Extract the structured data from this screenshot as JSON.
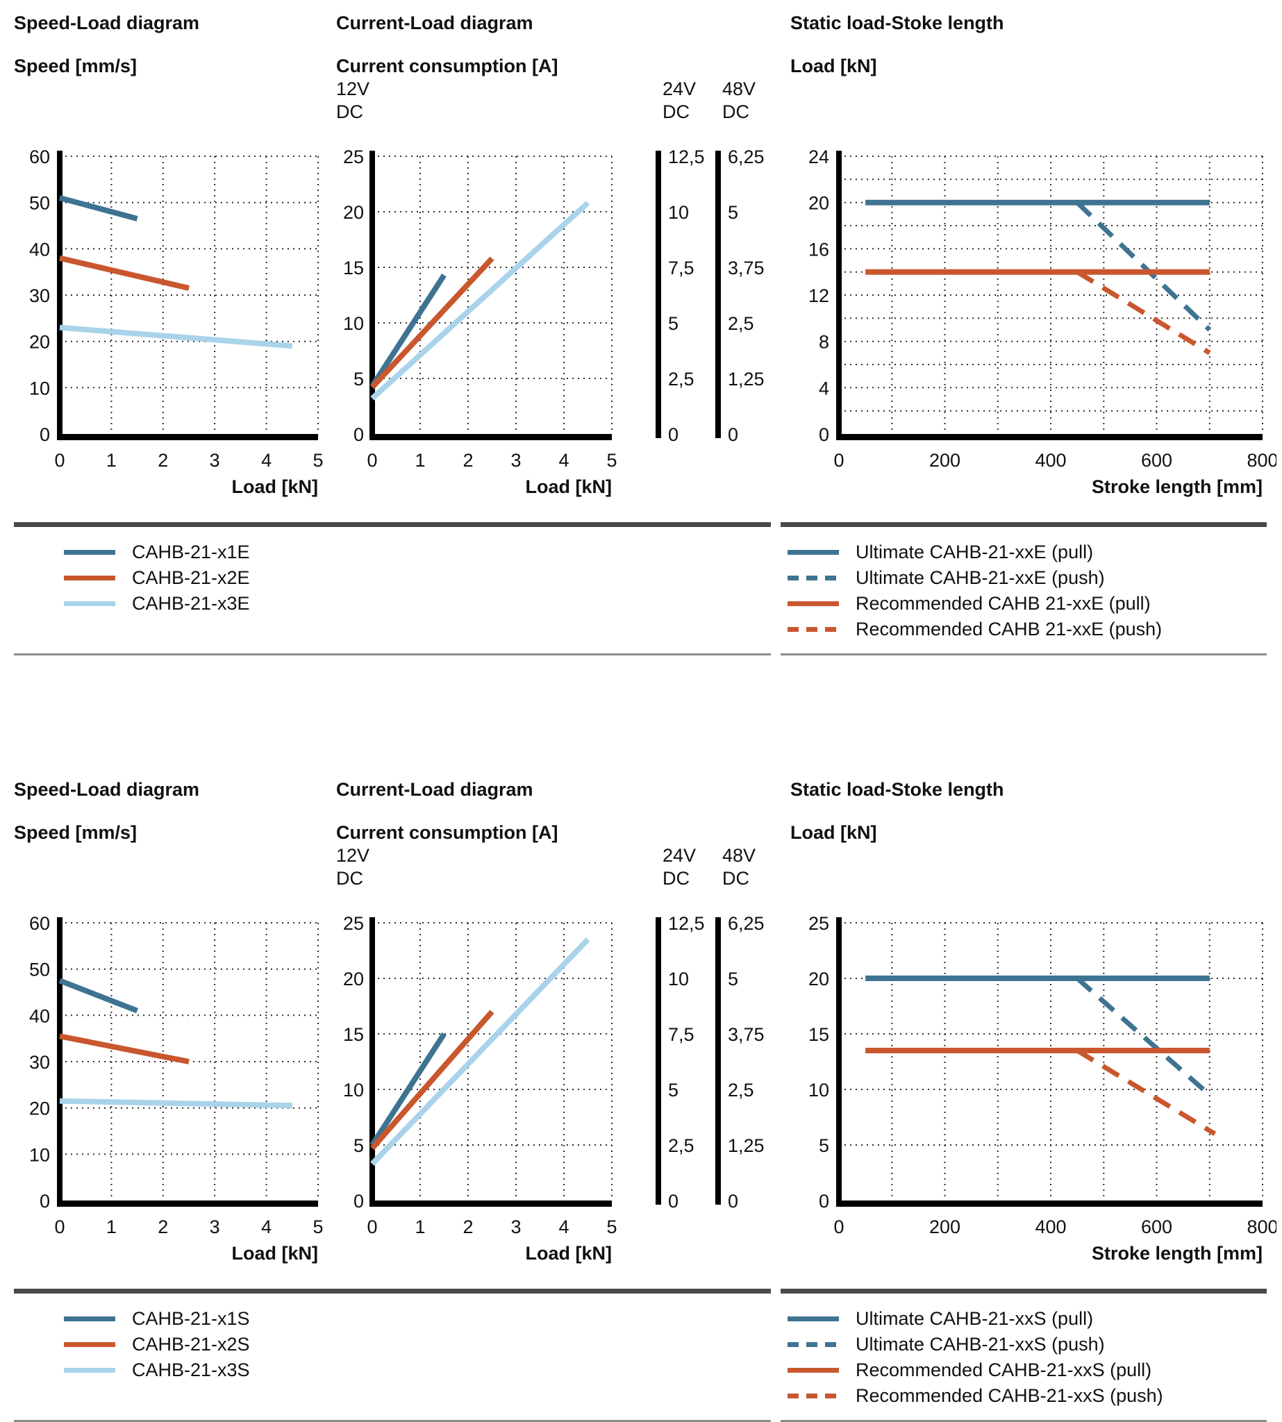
{
  "colors": {
    "dark_blue": "#3E7392",
    "orange": "#C9572E",
    "light_blue": "#A9D3EA",
    "axis": "#000000",
    "grid": "#2E2E2E",
    "rule_dark": "#4A4A4A",
    "rule_light": "#8C8C8C"
  },
  "chart_data": [
    {
      "kind": "speed",
      "type": "line",
      "title": "Speed-Load diagram",
      "ylabel": "Speed [mm/s]",
      "xlabel": "Load [kN]",
      "xlim": [
        0,
        5
      ],
      "ylim": [
        0,
        60
      ],
      "xticks": [
        0,
        1,
        2,
        3,
        4,
        5
      ],
      "yticks": [
        0,
        10,
        20,
        30,
        40,
        50,
        60
      ],
      "xgrid_step": 1,
      "ygrid_step": 10,
      "series": [
        {
          "id": "CAHB-21-x1E",
          "color": "dark_blue",
          "dashed": false,
          "points": [
            [
              0,
              51
            ],
            [
              1.5,
              46.5
            ]
          ]
        },
        {
          "id": "CAHB-21-x2E",
          "color": "orange",
          "dashed": false,
          "points": [
            [
              0,
              38
            ],
            [
              2.5,
              31.5
            ]
          ]
        },
        {
          "id": "CAHB-21-x3E",
          "color": "light_blue",
          "dashed": false,
          "points": [
            [
              0,
              23
            ],
            [
              4.5,
              19
            ]
          ]
        }
      ]
    },
    {
      "kind": "current",
      "type": "line",
      "title": "Current-Load diagram",
      "ylabel": "Current consumption [A]",
      "xlabel": "Load [kN]",
      "primary_voltage": "12V\nDC",
      "secondary_axes": [
        {
          "header": "24V\nDC",
          "ticks": [
            "12,5",
            "10",
            "7,5",
            "5",
            "2,5",
            "0"
          ]
        },
        {
          "header": "48V\nDC",
          "ticks": [
            "6,25",
            "5",
            "3,75",
            "2,5",
            "1,25",
            "0"
          ]
        }
      ],
      "xlim": [
        0,
        5
      ],
      "ylim": [
        0,
        25
      ],
      "xticks": [
        0,
        1,
        2,
        3,
        4,
        5
      ],
      "yticks": [
        0,
        5,
        10,
        15,
        20,
        25
      ],
      "xgrid_step": 1,
      "ygrid_step": 5,
      "series": [
        {
          "id": "CAHB-21-x1E",
          "color": "dark_blue",
          "dashed": false,
          "points": [
            [
              0,
              4.3
            ],
            [
              1.5,
              14.3
            ]
          ]
        },
        {
          "id": "CAHB-21-x2E",
          "color": "orange",
          "dashed": false,
          "points": [
            [
              0,
              4.2
            ],
            [
              2.5,
              15.8
            ]
          ]
        },
        {
          "id": "CAHB-21-x3E",
          "color": "light_blue",
          "dashed": false,
          "points": [
            [
              0,
              3.2
            ],
            [
              4.5,
              20.8
            ]
          ]
        }
      ]
    },
    {
      "kind": "static",
      "type": "line",
      "title": "Static load-Stoke length",
      "ylabel": "Load [kN]",
      "xlabel": "Stroke length [mm]",
      "xlim": [
        0,
        800
      ],
      "ylim": [
        0,
        24
      ],
      "xticks": [
        0,
        200,
        400,
        600,
        800
      ],
      "yticks": [
        0,
        4,
        8,
        12,
        16,
        20,
        24
      ],
      "xgrid_step": 100,
      "ygrid_step": 2,
      "series": [
        {
          "id": "Ultimate CAHB-21-xxE (pull)",
          "color": "dark_blue",
          "dashed": false,
          "points": [
            [
              50,
              20
            ],
            [
              700,
              20
            ]
          ]
        },
        {
          "id": "Ultimate CAHB-21-xxE (push)",
          "color": "dark_blue",
          "dashed": true,
          "points": [
            [
              450,
              20
            ],
            [
              700,
              9
            ]
          ]
        },
        {
          "id": "Recommended CAHB 21-xxE (pull)",
          "color": "orange",
          "dashed": false,
          "points": [
            [
              50,
              14
            ],
            [
              700,
              14
            ]
          ]
        },
        {
          "id": "Recommended CAHB 21-xxE (push)",
          "color": "orange",
          "dashed": true,
          "points": [
            [
              450,
              14
            ],
            [
              700,
              7
            ]
          ]
        }
      ]
    },
    {
      "kind": "speed",
      "type": "line",
      "title": "Speed-Load diagram",
      "ylabel": "Speed [mm/s]",
      "xlabel": "Load [kN]",
      "xlim": [
        0,
        5
      ],
      "ylim": [
        0,
        60
      ],
      "xticks": [
        0,
        1,
        2,
        3,
        4,
        5
      ],
      "yticks": [
        0,
        10,
        20,
        30,
        40,
        50,
        60
      ],
      "xgrid_step": 1,
      "ygrid_step": 10,
      "series": [
        {
          "id": "CAHB-21-x1S",
          "color": "dark_blue",
          "dashed": false,
          "points": [
            [
              0,
              47.5
            ],
            [
              1.5,
              41
            ]
          ]
        },
        {
          "id": "CAHB-21-x2S",
          "color": "orange",
          "dashed": false,
          "points": [
            [
              0,
              35.5
            ],
            [
              2.5,
              30
            ]
          ]
        },
        {
          "id": "CAHB-21-x3S",
          "color": "light_blue",
          "dashed": false,
          "points": [
            [
              0,
              21.5
            ],
            [
              4.5,
              20.5
            ]
          ]
        }
      ]
    },
    {
      "kind": "current",
      "type": "line",
      "title": "Current-Load diagram",
      "ylabel": "Current consumption [A]",
      "xlabel": "Load [kN]",
      "primary_voltage": "12V\nDC",
      "secondary_axes": [
        {
          "header": "24V\nDC",
          "ticks": [
            "12,5",
            "10",
            "7,5",
            "5",
            "2,5",
            "0"
          ]
        },
        {
          "header": "48V\nDC",
          "ticks": [
            "6,25",
            "5",
            "3,75",
            "2,5",
            "1,25",
            "0"
          ]
        }
      ],
      "xlim": [
        0,
        5
      ],
      "ylim": [
        0,
        25
      ],
      "xticks": [
        0,
        1,
        2,
        3,
        4,
        5
      ],
      "yticks": [
        0,
        5,
        10,
        15,
        20,
        25
      ],
      "xgrid_step": 1,
      "ygrid_step": 5,
      "series": [
        {
          "id": "CAHB-21-x1S",
          "color": "dark_blue",
          "dashed": false,
          "points": [
            [
              0,
              5
            ],
            [
              1.5,
              15
            ]
          ]
        },
        {
          "id": "CAHB-21-x2S",
          "color": "orange",
          "dashed": false,
          "points": [
            [
              0,
              4.7
            ],
            [
              2.5,
              17
            ]
          ]
        },
        {
          "id": "CAHB-21-x3S",
          "color": "light_blue",
          "dashed": false,
          "points": [
            [
              0,
              3.3
            ],
            [
              4.5,
              23.5
            ]
          ]
        }
      ]
    },
    {
      "kind": "static",
      "type": "line",
      "title": "Static load-Stoke length",
      "ylabel": "Load [kN]",
      "xlabel": "Stroke length [mm]",
      "xlim": [
        0,
        800
      ],
      "ylim": [
        0,
        25
      ],
      "xticks": [
        0,
        200,
        400,
        600,
        800
      ],
      "yticks": [
        0,
        5,
        10,
        15,
        20,
        25
      ],
      "xgrid_step": 100,
      "ygrid_step": 5,
      "series": [
        {
          "id": "Ultimate CAHB-21-xxS (pull)",
          "color": "dark_blue",
          "dashed": false,
          "points": [
            [
              50,
              20
            ],
            [
              700,
              20
            ]
          ]
        },
        {
          "id": "Ultimate CAHB-21-xxS (push)",
          "color": "dark_blue",
          "dashed": true,
          "points": [
            [
              450,
              20
            ],
            [
              700,
              9.5
            ]
          ]
        },
        {
          "id": "Recommended CAHB-21-xxS (pull)",
          "color": "orange",
          "dashed": false,
          "points": [
            [
              50,
              13.5
            ],
            [
              700,
              13.5
            ]
          ]
        },
        {
          "id": "Recommended CAHB-21-xxS (push)",
          "color": "orange",
          "dashed": true,
          "points": [
            [
              450,
              13.5
            ],
            [
              710,
              6
            ]
          ]
        }
      ]
    }
  ],
  "legends": [
    {
      "items": [
        {
          "label": "CAHB-21-x1E",
          "color": "dark_blue",
          "dashed": false
        },
        {
          "label": "CAHB-21-x2E",
          "color": "orange",
          "dashed": false
        },
        {
          "label": "CAHB-21-x3E",
          "color": "light_blue",
          "dashed": false
        }
      ]
    },
    {
      "items": [
        {
          "label": "Ultimate CAHB-21-xxE (pull)",
          "color": "dark_blue",
          "dashed": false
        },
        {
          "label": "Ultimate CAHB-21-xxE (push)",
          "color": "dark_blue",
          "dashed": true
        },
        {
          "label": "Recommended CAHB 21-xxE (pull)",
          "color": "orange",
          "dashed": false
        },
        {
          "label": "Recommended CAHB 21-xxE (push)",
          "color": "orange",
          "dashed": true
        }
      ]
    },
    {
      "items": [
        {
          "label": "CAHB-21-x1S",
          "color": "dark_blue",
          "dashed": false
        },
        {
          "label": "CAHB-21-x2S",
          "color": "orange",
          "dashed": false
        },
        {
          "label": "CAHB-21-x3S",
          "color": "light_blue",
          "dashed": false
        }
      ]
    },
    {
      "items": [
        {
          "label": "Ultimate CAHB-21-xxS (pull)",
          "color": "dark_blue",
          "dashed": false
        },
        {
          "label": "Ultimate CAHB-21-xxS (push)",
          "color": "dark_blue",
          "dashed": true
        },
        {
          "label": "Recommended CAHB-21-xxS (pull)",
          "color": "orange",
          "dashed": false
        },
        {
          "label": "Recommended CAHB-21-xxS (push)",
          "color": "orange",
          "dashed": true
        }
      ]
    }
  ]
}
